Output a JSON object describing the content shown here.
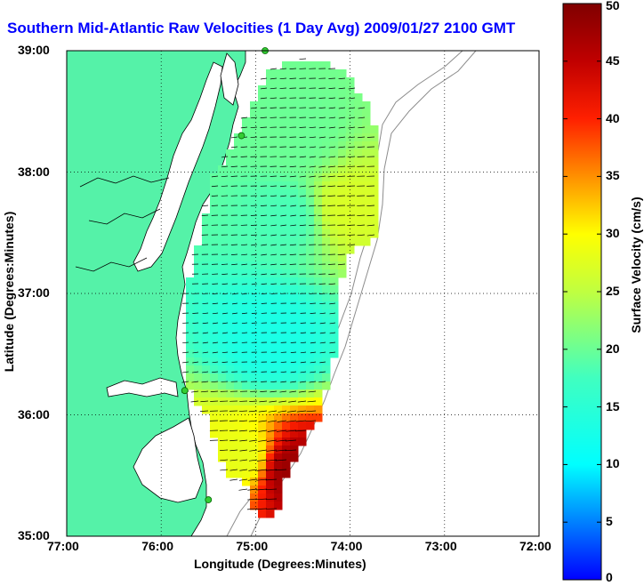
{
  "title": "Southern Mid-Atlantic Raw Velocities (1 Day Avg) 2009/01/27 2100 GMT",
  "xaxis": {
    "label": "Longitude (Degrees:Minutes)",
    "ticks": [
      "77:00",
      "76:00",
      "75:00",
      "74:00",
      "73:00",
      "72:00"
    ]
  },
  "yaxis": {
    "label": "Latitude (Degrees:Minutes)",
    "ticks": [
      "39:00",
      "38:00",
      "37:00",
      "36:00",
      "35:00"
    ]
  },
  "colorbar": {
    "label": "Surface Velocity (cm/s)",
    "ticks": [
      "50",
      "45",
      "40",
      "35",
      "30",
      "25",
      "20",
      "15",
      "10",
      "5",
      "0"
    ],
    "range": [
      0,
      50
    ]
  },
  "colors": {
    "land": "#55f2a8",
    "coast": "#000000",
    "title": "#0000ff",
    "station": "#33cc33"
  },
  "chart_data": {
    "type": "heatmap",
    "title": "Southern Mid-Atlantic Raw Velocities (1 Day Avg) 2009/01/27 2100 GMT",
    "xlabel": "Longitude (Degrees:Minutes)",
    "ylabel": "Latitude (Degrees:Minutes)",
    "colorbar_label": "Surface Velocity (cm/s)",
    "xlim": [
      -77,
      -72
    ],
    "ylim": [
      35,
      39
    ],
    "clim": [
      0,
      50
    ],
    "grid": true,
    "velocity_regions": [
      {
        "region": "northern shelf near 38:30N 74:50W",
        "speed_cm_s": 20
      },
      {
        "region": "central shelf near 37:30N 74:30W",
        "speed_cm_s": 18
      },
      {
        "region": "offshore near 37:40N 74:20W",
        "speed_cm_s": 27
      },
      {
        "region": "near 36:40N 74:40W",
        "speed_cm_s": 13
      },
      {
        "region": "near 36:00N 75:00W",
        "speed_cm_s": 28
      },
      {
        "region": "Cape Hatteras near 35:30N 74:50W",
        "speed_cm_s": 48
      }
    ],
    "stations": [
      {
        "lon": -74.9,
        "lat": 39.0
      },
      {
        "lon": -75.15,
        "lat": 38.3
      },
      {
        "lon": -75.75,
        "lat": 36.2
      },
      {
        "lon": -75.5,
        "lat": 35.3
      }
    ]
  }
}
